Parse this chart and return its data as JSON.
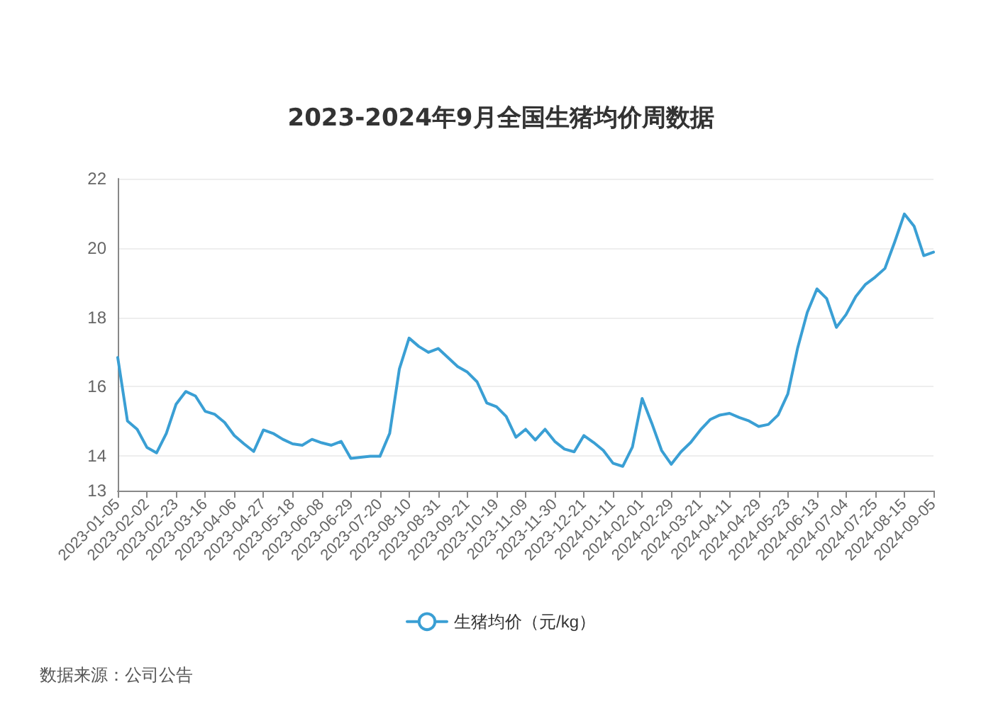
{
  "chart_data": {
    "type": "line",
    "title": "2023-2024年9月全国生猪均价周数据",
    "categories": [
      "2023-01-05",
      null,
      null,
      "2023-02-02",
      null,
      null,
      "2023-02-23",
      null,
      null,
      "2023-03-16",
      null,
      null,
      "2023-04-06",
      null,
      null,
      "2023-04-27",
      null,
      null,
      "2023-05-18",
      null,
      null,
      "2023-06-08",
      null,
      null,
      "2023-06-29",
      null,
      null,
      "2023-07-20",
      null,
      null,
      "2023-08-10",
      null,
      null,
      "2023-08-31",
      null,
      null,
      "2023-09-21",
      null,
      null,
      "2023-10-19",
      null,
      null,
      "2023-11-09",
      null,
      null,
      "2023-11-30",
      null,
      null,
      "2023-12-21",
      null,
      null,
      "2024-01-11",
      null,
      null,
      "2024-02-01",
      null,
      null,
      "2024-02-29",
      null,
      null,
      "2024-03-21",
      null,
      null,
      "2024-04-11",
      null,
      null,
      "2024-04-29",
      null,
      null,
      "2024-05-23",
      null,
      null,
      "2024-06-13",
      null,
      null,
      "2024-07-04",
      null,
      null,
      "2024-07-25",
      null,
      null,
      "2024-08-15",
      null,
      null,
      "2024-09-05"
    ],
    "series": [
      {
        "name": "生猪均价（元/kg）",
        "color": "#3a9fd4",
        "values": [
          16.84,
          15.01,
          14.77,
          14.25,
          14.09,
          14.65,
          15.49,
          15.86,
          15.73,
          15.29,
          15.2,
          14.97,
          14.59,
          14.35,
          14.13,
          14.75,
          14.65,
          14.48,
          14.35,
          14.31,
          14.48,
          14.38,
          14.31,
          14.42,
          13.93,
          13.96,
          13.99,
          13.99,
          14.65,
          16.51,
          17.4,
          17.16,
          16.99,
          17.1,
          16.84,
          16.58,
          16.42,
          16.14,
          15.53,
          15.42,
          15.14,
          14.54,
          14.77,
          14.46,
          14.77,
          14.42,
          14.2,
          14.12,
          14.59,
          14.39,
          14.16,
          13.79,
          13.7,
          14.26,
          15.66,
          14.94,
          14.16,
          13.76,
          14.12,
          14.39,
          14.75,
          15.05,
          15.18,
          15.23,
          15.11,
          15.01,
          14.85,
          14.91,
          15.18,
          15.79,
          17.1,
          18.14,
          18.82,
          18.54,
          17.71,
          18.08,
          18.6,
          18.95,
          19.16,
          19.41,
          20.17,
          20.98,
          20.63,
          19.78,
          19.88
        ]
      }
    ],
    "ylim": [
      13,
      22
    ],
    "yticks": [
      13,
      14,
      16,
      18,
      20,
      22
    ],
    "grid": "y",
    "legend": "bottom",
    "marker": "none",
    "line_style": "solid",
    "annotations": [
      "数据来源：公司公告"
    ]
  }
}
